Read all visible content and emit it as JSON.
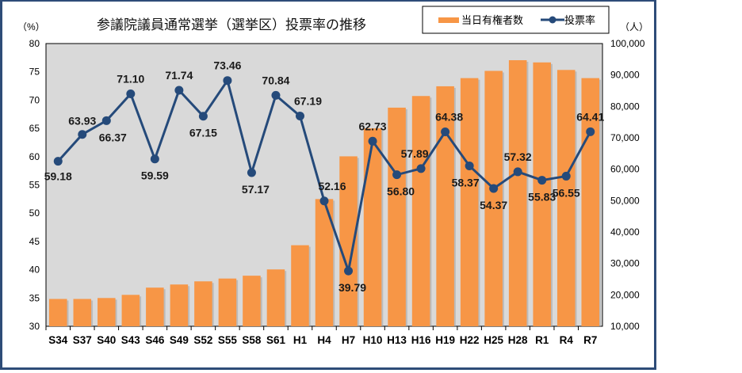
{
  "chart_data": {
    "type": "bar+line",
    "title": "参議院議員通常選挙（選挙区）投票率の推移",
    "ylabel_left": "（%）",
    "ylabel_right": "（人）",
    "categories": [
      "S34",
      "S37",
      "S40",
      "S43",
      "S46",
      "S49",
      "S52",
      "S55",
      "S58",
      "S61",
      "H1",
      "H4",
      "H7",
      "H10",
      "H13",
      "H16",
      "H19",
      "H22",
      "H25",
      "H28",
      "R1",
      "R4",
      "R7"
    ],
    "series": [
      {
        "name": "当日有権者数",
        "type": "bar",
        "axis": "right",
        "color": "#f79646",
        "values": [
          18700,
          18700,
          19000,
          20000,
          22300,
          23300,
          24300,
          25200,
          26100,
          28100,
          35800,
          50500,
          64100,
          73000,
          79600,
          83300,
          86400,
          89000,
          91300,
          94700,
          94000,
          91600,
          89000
        ]
      },
      {
        "name": "投票率",
        "type": "line",
        "axis": "left",
        "color": "#254a7a",
        "values": [
          59.18,
          63.93,
          66.37,
          71.1,
          59.59,
          71.74,
          67.15,
          73.46,
          57.17,
          70.84,
          67.19,
          52.16,
          39.79,
          62.73,
          56.8,
          57.89,
          64.38,
          58.37,
          54.37,
          57.32,
          55.83,
          56.55,
          64.41
        ],
        "labels": [
          "59.18",
          "63.93",
          "66.37",
          "71.10",
          "59.59",
          "71.74",
          "67.15",
          "73.46",
          "57.17",
          "70.84",
          "67.19",
          "52.16",
          "39.79",
          "62.73",
          "56.80",
          "57.89",
          "64.38",
          "58.37",
          "54.37",
          "57.32",
          "55.83",
          "56.55",
          "64.41"
        ]
      }
    ],
    "ylim_left": [
      30,
      80
    ],
    "yticks_left": [
      "30",
      "35",
      "40",
      "45",
      "50",
      "55",
      "60",
      "65",
      "70",
      "75",
      "80"
    ],
    "ylim_right": [
      10000,
      100000
    ],
    "yticks_right": [
      "10,000",
      "20,000",
      "30,000",
      "40,000",
      "50,000",
      "60,000",
      "70,000",
      "80,000",
      "90,000",
      "100,000"
    ],
    "legend_position": "top-right",
    "grid": false,
    "plot_background": "#d9d9d9"
  }
}
